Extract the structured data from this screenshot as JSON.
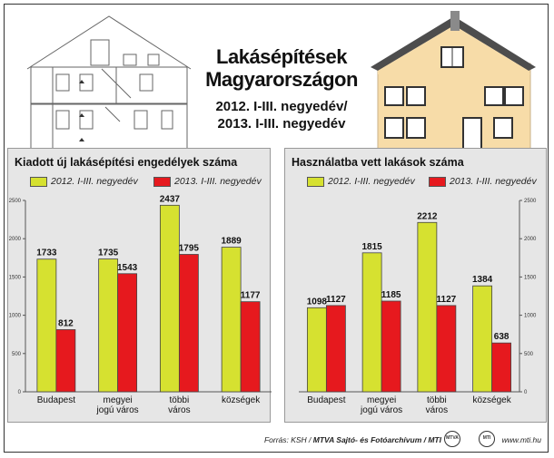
{
  "title": {
    "line1": "Lakásépítések",
    "line2": "Magyarországon",
    "sub1": "2012. I-III. negyedév/",
    "sub2": "2013.  I-III. negyedév"
  },
  "colors": {
    "series_2012": "#d6e130",
    "series_2013": "#e6191e",
    "panel_bg": "#e6e6e6"
  },
  "chart_data": [
    {
      "type": "bar",
      "title": "Kiadott új lakásépítési engedélyek száma",
      "categories": [
        "Budapest",
        "megyei\njogú város",
        "többi\nváros",
        "községek"
      ],
      "series": [
        {
          "name": "2012. I-III. negyedév",
          "values": [
            1733,
            1735,
            2437,
            1889
          ]
        },
        {
          "name": "2013. I-III. negyedév",
          "values": [
            812,
            1543,
            1795,
            1177
          ]
        }
      ],
      "ylim": [
        0,
        2500
      ],
      "yticks": [
        0,
        500,
        1000,
        1500,
        2000,
        2500
      ],
      "ytick_labels": [
        "0",
        "500",
        "1000",
        "1500",
        "2000",
        "2500"
      ],
      "axis_side": "left",
      "legend": "top",
      "grid": false
    },
    {
      "type": "bar",
      "title": "Használatba vett lakások száma",
      "categories": [
        "Budapest",
        "megyei\njogú város",
        "többi\nváros",
        "községek"
      ],
      "series": [
        {
          "name": "2012. I-III. negyedév",
          "values": [
            1098,
            1815,
            2212,
            1384
          ]
        },
        {
          "name": "2013. I-III. negyedév",
          "values": [
            1127,
            1185,
            1127,
            638
          ]
        }
      ],
      "ylim": [
        0,
        2500
      ],
      "yticks": [
        0,
        500,
        1000,
        1500,
        2000,
        2500
      ],
      "ytick_labels": [
        "0",
        "500",
        "1000",
        "1500",
        "2000",
        "2500"
      ],
      "axis_side": "right",
      "legend": "top",
      "grid": false
    }
  ],
  "footer": {
    "source_prefix": "Forrás: KSH / ",
    "source_bold": "MTVA Sajtó- és Fotóarchívum / MTI",
    "logo1": "MTVA",
    "logo2": "MTI",
    "website": "www.mti.hu"
  }
}
